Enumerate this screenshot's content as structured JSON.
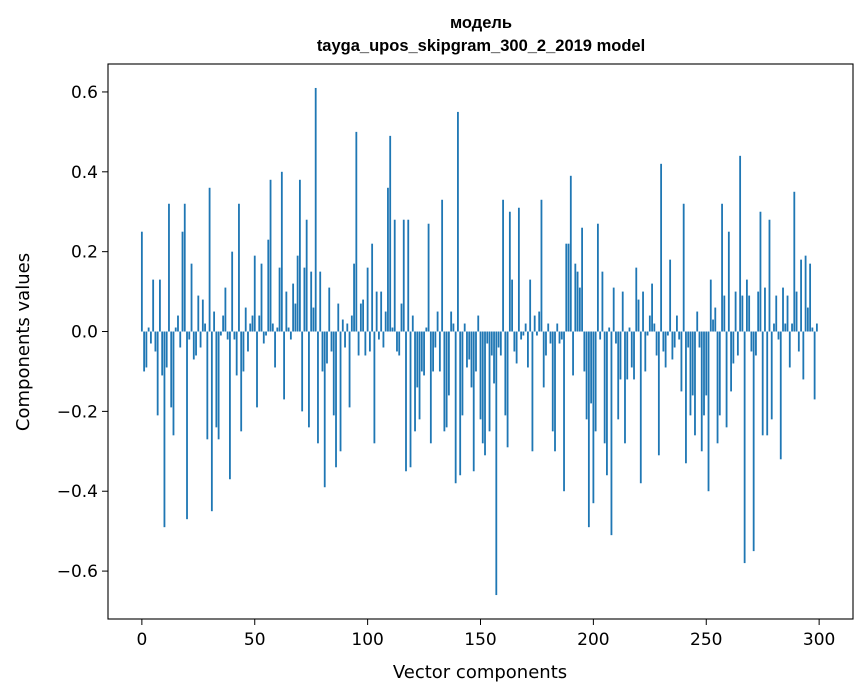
{
  "chart_data": {
    "type": "bar",
    "title": "модель",
    "subtitle": "tayga_upos_skipgram_300_2_2019 model",
    "xlabel": "Vector components",
    "ylabel": "Components values",
    "xlim": [
      -15,
      315
    ],
    "ylim": [
      -0.72,
      0.67
    ],
    "xticks": [
      0,
      50,
      100,
      150,
      200,
      250,
      300
    ],
    "xtick_labels": [
      "0",
      "50",
      "100",
      "150",
      "200",
      "250",
      "300"
    ],
    "yticks": [
      0.6,
      0.4,
      0.2,
      0.0,
      -0.2,
      -0.4,
      -0.6
    ],
    "ytick_labels": [
      "0.6",
      "0.4",
      "0.2",
      "0.0",
      "−0.2",
      "−0.4",
      "−0.6"
    ],
    "bar_color": "#1f77b4",
    "x": "0..299 (component index)",
    "values": [
      0.25,
      -0.1,
      -0.09,
      0.01,
      -0.03,
      0.13,
      -0.05,
      -0.21,
      0.13,
      -0.11,
      -0.49,
      -0.09,
      0.32,
      -0.19,
      -0.26,
      0.01,
      0.04,
      -0.04,
      0.25,
      0.32,
      -0.47,
      -0.02,
      0.17,
      -0.07,
      -0.06,
      0.09,
      -0.04,
      0.08,
      0.02,
      -0.27,
      0.36,
      -0.45,
      0.05,
      -0.24,
      -0.27,
      -0.01,
      0.04,
      0.11,
      -0.02,
      -0.37,
      0.2,
      -0.02,
      -0.11,
      0.32,
      -0.25,
      -0.1,
      0.06,
      -0.05,
      0.02,
      0.04,
      0.19,
      -0.19,
      0.04,
      0.17,
      -0.03,
      -0.01,
      0.23,
      0.38,
      0.02,
      -0.09,
      0.01,
      0.16,
      0.4,
      -0.17,
      0.1,
      0.01,
      -0.02,
      0.12,
      0.07,
      0.19,
      0.38,
      -0.2,
      0.16,
      0.28,
      -0.24,
      0.15,
      0.06,
      0.61,
      -0.28,
      0.15,
      -0.1,
      -0.39,
      -0.08,
      0.11,
      -0.05,
      -0.21,
      -0.34,
      0.07,
      -0.3,
      0.03,
      -0.04,
      0.02,
      -0.19,
      0.04,
      0.17,
      0.5,
      -0.06,
      0.07,
      0.08,
      -0.06,
      0.16,
      -0.05,
      0.22,
      -0.28,
      0.1,
      -0.02,
      0.1,
      -0.04,
      0.05,
      0.36,
      0.49,
      0.01,
      0.28,
      -0.05,
      -0.06,
      0.07,
      0.28,
      -0.35,
      0.28,
      -0.34,
      0.04,
      -0.25,
      -0.14,
      -0.22,
      -0.1,
      -0.11,
      0.01,
      0.27,
      -0.28,
      -0.1,
      -0.04,
      0.05,
      -0.1,
      0.33,
      -0.25,
      -0.24,
      -0.16,
      0.05,
      0.02,
      -0.38,
      0.55,
      -0.36,
      -0.21,
      0.02,
      -0.09,
      -0.07,
      -0.14,
      -0.35,
      -0.1,
      0.04,
      -0.22,
      -0.28,
      -0.31,
      -0.03,
      -0.25,
      -0.06,
      -0.13,
      -0.66,
      -0.04,
      -0.06,
      0.33,
      -0.21,
      -0.29,
      0.3,
      0.13,
      -0.05,
      -0.08,
      0.31,
      -0.02,
      -0.01,
      0.02,
      -0.09,
      0.13,
      -0.3,
      0.04,
      -0.01,
      0.05,
      0.33,
      -0.14,
      -0.06,
      0.02,
      -0.03,
      -0.25,
      -0.3,
      0.02,
      -0.03,
      -0.02,
      -0.4,
      0.22,
      0.22,
      0.39,
      -0.11,
      0.17,
      0.15,
      0.11,
      0.26,
      -0.1,
      -0.22,
      -0.49,
      -0.18,
      -0.43,
      -0.25,
      0.27,
      -0.02,
      0.15,
      -0.28,
      -0.36,
      0.01,
      -0.51,
      0.11,
      -0.03,
      -0.22,
      -0.12,
      0.1,
      -0.28,
      -0.12,
      0.01,
      -0.09,
      -0.12,
      0.16,
      0.08,
      -0.38,
      0.1,
      -0.1,
      -0.01,
      0.04,
      0.12,
      0.02,
      -0.06,
      -0.31,
      0.42,
      -0.05,
      -0.09,
      -0.01,
      0.18,
      -0.07,
      -0.04,
      0.04,
      -0.02,
      -0.15,
      0.32,
      -0.33,
      -0.04,
      -0.21,
      -0.16,
      -0.26,
      0.05,
      -0.04,
      -0.3,
      -0.21,
      -0.16,
      -0.4,
      0.13,
      0.03,
      0.06,
      -0.28,
      -0.21,
      0.32,
      0.09,
      -0.24,
      0.25,
      -0.15,
      -0.08,
      0.1,
      -0.06,
      0.44,
      0.09,
      -0.58,
      0.13,
      0.09,
      -0.05,
      -0.55,
      -0.06,
      0.1,
      0.3,
      -0.26,
      0.11,
      -0.26,
      0.28,
      -0.22,
      0.02,
      0.09,
      -0.02,
      -0.32,
      0.11,
      0.02,
      0.09,
      -0.09,
      0.02,
      0.35,
      0.1,
      -0.05,
      0.18,
      -0.12,
      0.19,
      0.06,
      0.17,
      0.01,
      -0.17,
      0.02
    ]
  }
}
